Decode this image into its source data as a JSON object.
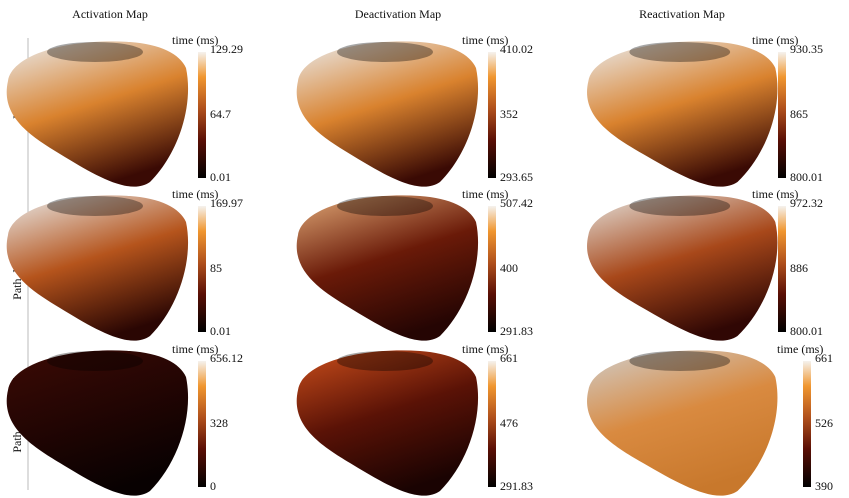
{
  "columns": [
    "Activation Map",
    "Deactivation Map",
    "Reactivation Map"
  ],
  "rows": [
    "Healthy",
    "Path. low-cond.",
    "Path. zero-cond"
  ],
  "panels": [
    [
      {
        "unit": "time (ms)",
        "max": "129.29",
        "mid": "64.7",
        "min": "0.01"
      },
      {
        "unit": "time (ms)",
        "max": "410.02",
        "mid": "352",
        "min": "293.65"
      },
      {
        "unit": "time (ms)",
        "max": "930.35",
        "mid": "865",
        "min": "800.01"
      }
    ],
    [
      {
        "unit": "time (ms)",
        "max": "169.97",
        "mid": "85",
        "min": "0.01"
      },
      {
        "unit": "time (ms)",
        "max": "507.42",
        "mid": "400",
        "min": "291.83"
      },
      {
        "unit": "time (ms)",
        "max": "972.32",
        "mid": "886",
        "min": "800.01"
      }
    ],
    [
      {
        "unit": "time (ms)",
        "max": "656.12",
        "mid": "328",
        "min": "0"
      },
      {
        "unit": "time (ms)",
        "max": "661",
        "mid": "476",
        "min": "291.83"
      },
      {
        "unit": "time (ms)",
        "max": "661",
        "mid": "526",
        "min": "390"
      }
    ]
  ]
}
